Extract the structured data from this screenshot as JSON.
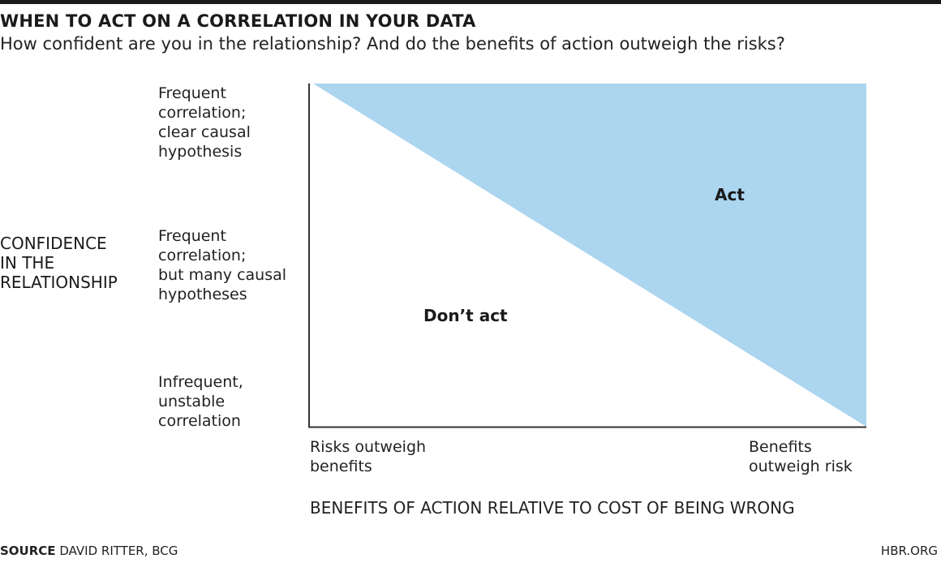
{
  "title": "WHEN TO ACT ON A CORRELATION IN YOUR DATA",
  "subtitle": "How confident are you in the relationship? And do the benefits of action outweigh the risks?",
  "diagram": {
    "y_axis_title": "CONFIDENCE\nIN THE\nRELATIONSHIP",
    "y_ticks": {
      "top": "Frequent\ncorrelation;\nclear causal\nhypothesis",
      "middle": "Frequent\ncorrelation;\nbut many causal\nhypotheses",
      "bottom": "Infrequent,\nunstable\ncorrelation"
    },
    "x_ticks": {
      "left": "Risks outweigh\nbenefits",
      "right": "Benefits\noutweigh risk"
    },
    "x_axis_title": "BENEFITS OF ACTION RELATIVE TO COST OF BEING WRONG",
    "regions": {
      "act": "Act",
      "dont_act": "Don’t act"
    },
    "colors": {
      "act_region": "#acd5ef",
      "axis": "#333333",
      "text": "#1a1a1a"
    }
  },
  "footer": {
    "source_tag": "SOURCE",
    "source_text": " DAVID RITTER, BCG",
    "brand": "HBR.ORG"
  }
}
